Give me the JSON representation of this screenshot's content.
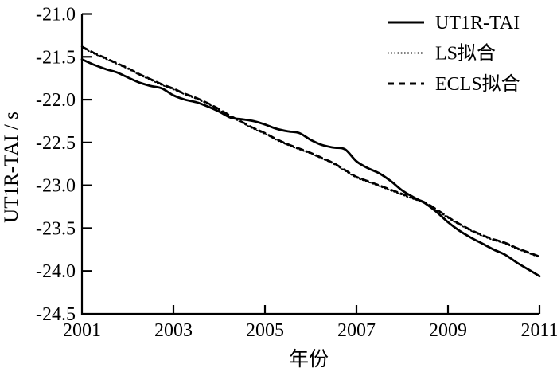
{
  "chart_data": {
    "type": "line",
    "title": "",
    "xlabel": "年份",
    "ylabel": "UT1R-TAI / s",
    "xlim": [
      2001,
      2011
    ],
    "ylim": [
      -24.5,
      -21.0
    ],
    "grid": false,
    "legend_position": "top-right-inside",
    "x_tick_labels": [
      "2001",
      "2003",
      "2005",
      "2007",
      "2009",
      "2011"
    ],
    "x_tick_label_years": [
      2001,
      2003,
      2005,
      2007,
      2009,
      2011
    ],
    "x_tick_mark_years": [
      2003,
      2005,
      2007,
      2009,
      2011
    ],
    "y_ticks": [
      {
        "value": -21.0,
        "label": "-21.0"
      },
      {
        "value": -21.5,
        "label": "-21.5"
      },
      {
        "value": -22.0,
        "label": "-22.0"
      },
      {
        "value": -22.5,
        "label": "-22.5"
      },
      {
        "value": -23.0,
        "label": "-23.0"
      },
      {
        "value": -23.5,
        "label": "-23.5"
      },
      {
        "value": -24.0,
        "label": "-24.0"
      },
      {
        "value": -24.5,
        "label": "-24.5"
      }
    ],
    "series": [
      {
        "name": "UT1R-TAI",
        "style": "solid",
        "color": "#000000",
        "points": [
          [
            2001.0,
            -21.53
          ],
          [
            2001.25,
            -21.59
          ],
          [
            2001.5,
            -21.64
          ],
          [
            2001.75,
            -21.68
          ],
          [
            2002.0,
            -21.74
          ],
          [
            2002.25,
            -21.8
          ],
          [
            2002.5,
            -21.84
          ],
          [
            2002.75,
            -21.87
          ],
          [
            2003.0,
            -21.95
          ],
          [
            2003.25,
            -22.0
          ],
          [
            2003.5,
            -22.03
          ],
          [
            2003.75,
            -22.08
          ],
          [
            2004.0,
            -22.14
          ],
          [
            2004.25,
            -22.21
          ],
          [
            2004.5,
            -22.23
          ],
          [
            2004.75,
            -22.25
          ],
          [
            2005.0,
            -22.29
          ],
          [
            2005.25,
            -22.34
          ],
          [
            2005.5,
            -22.37
          ],
          [
            2005.75,
            -22.39
          ],
          [
            2006.0,
            -22.47
          ],
          [
            2006.25,
            -22.53
          ],
          [
            2006.5,
            -22.56
          ],
          [
            2006.75,
            -22.58
          ],
          [
            2007.0,
            -22.72
          ],
          [
            2007.25,
            -22.8
          ],
          [
            2007.5,
            -22.86
          ],
          [
            2007.75,
            -22.95
          ],
          [
            2008.0,
            -23.06
          ],
          [
            2008.25,
            -23.14
          ],
          [
            2008.5,
            -23.21
          ],
          [
            2008.75,
            -23.31
          ],
          [
            2009.0,
            -23.43
          ],
          [
            2009.25,
            -23.53
          ],
          [
            2009.5,
            -23.61
          ],
          [
            2009.75,
            -23.68
          ],
          [
            2010.0,
            -23.75
          ],
          [
            2010.25,
            -23.81
          ],
          [
            2010.5,
            -23.9
          ],
          [
            2010.75,
            -23.98
          ],
          [
            2011.0,
            -24.06
          ]
        ]
      },
      {
        "name": "LS拟合",
        "style": "dotted",
        "color": "#000000",
        "points": [
          [
            2001.0,
            -21.39
          ],
          [
            2001.25,
            -21.46
          ],
          [
            2001.5,
            -21.52
          ],
          [
            2001.75,
            -21.58
          ],
          [
            2002.0,
            -21.64
          ],
          [
            2002.25,
            -21.71
          ],
          [
            2002.5,
            -21.77
          ],
          [
            2002.75,
            -21.83
          ],
          [
            2003.0,
            -21.88
          ],
          [
            2003.25,
            -21.94
          ],
          [
            2003.5,
            -21.99
          ],
          [
            2003.75,
            -22.05
          ],
          [
            2004.0,
            -22.12
          ],
          [
            2004.25,
            -22.2
          ],
          [
            2004.5,
            -22.27
          ],
          [
            2004.75,
            -22.34
          ],
          [
            2005.0,
            -22.4
          ],
          [
            2005.25,
            -22.47
          ],
          [
            2005.5,
            -22.53
          ],
          [
            2005.75,
            -22.58
          ],
          [
            2006.0,
            -22.63
          ],
          [
            2006.25,
            -22.69
          ],
          [
            2006.5,
            -22.75
          ],
          [
            2006.75,
            -22.83
          ],
          [
            2007.0,
            -22.91
          ],
          [
            2007.25,
            -22.96
          ],
          [
            2007.5,
            -23.01
          ],
          [
            2007.75,
            -23.06
          ],
          [
            2008.0,
            -23.11
          ],
          [
            2008.25,
            -23.16
          ],
          [
            2008.5,
            -23.21
          ],
          [
            2008.75,
            -23.29
          ],
          [
            2009.0,
            -23.38
          ],
          [
            2009.25,
            -23.46
          ],
          [
            2009.5,
            -23.53
          ],
          [
            2009.75,
            -23.59
          ],
          [
            2010.0,
            -23.64
          ],
          [
            2010.25,
            -23.68
          ],
          [
            2010.5,
            -23.74
          ],
          [
            2010.75,
            -23.79
          ],
          [
            2011.0,
            -23.84
          ]
        ]
      },
      {
        "name": "ECLS拟合",
        "style": "dashed",
        "color": "#000000",
        "points": [
          [
            2001.0,
            -21.38
          ],
          [
            2001.25,
            -21.45
          ],
          [
            2001.5,
            -21.51
          ],
          [
            2001.75,
            -21.57
          ],
          [
            2002.0,
            -21.63
          ],
          [
            2002.25,
            -21.7
          ],
          [
            2002.5,
            -21.76
          ],
          [
            2002.75,
            -21.82
          ],
          [
            2003.0,
            -21.87
          ],
          [
            2003.25,
            -21.93
          ],
          [
            2003.5,
            -21.98
          ],
          [
            2003.75,
            -22.04
          ],
          [
            2004.0,
            -22.11
          ],
          [
            2004.25,
            -22.19
          ],
          [
            2004.5,
            -22.26
          ],
          [
            2004.75,
            -22.33
          ],
          [
            2005.0,
            -22.39
          ],
          [
            2005.25,
            -22.46
          ],
          [
            2005.5,
            -22.52
          ],
          [
            2005.75,
            -22.57
          ],
          [
            2006.0,
            -22.62
          ],
          [
            2006.25,
            -22.68
          ],
          [
            2006.5,
            -22.74
          ],
          [
            2006.75,
            -22.82
          ],
          [
            2007.0,
            -22.9
          ],
          [
            2007.25,
            -22.95
          ],
          [
            2007.5,
            -23.0
          ],
          [
            2007.75,
            -23.05
          ],
          [
            2008.0,
            -23.1
          ],
          [
            2008.25,
            -23.15
          ],
          [
            2008.5,
            -23.2
          ],
          [
            2008.75,
            -23.28
          ],
          [
            2009.0,
            -23.37
          ],
          [
            2009.25,
            -23.45
          ],
          [
            2009.5,
            -23.52
          ],
          [
            2009.75,
            -23.58
          ],
          [
            2010.0,
            -23.63
          ],
          [
            2010.25,
            -23.67
          ],
          [
            2010.5,
            -23.73
          ],
          [
            2010.75,
            -23.78
          ],
          [
            2011.0,
            -23.83
          ]
        ]
      }
    ],
    "colors": {
      "foreground": "#000000",
      "background": "#ffffff"
    }
  }
}
